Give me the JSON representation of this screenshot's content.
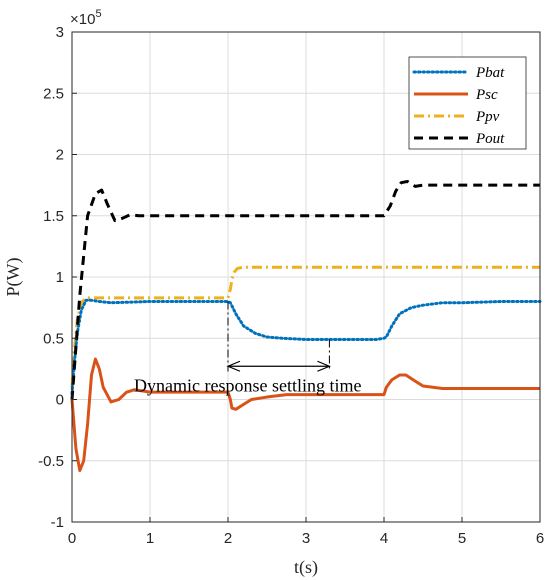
{
  "chart_data": {
    "type": "line",
    "xlabel": "t(s)",
    "ylabel": "P(W)",
    "xlim": [
      0,
      6
    ],
    "ylim": [
      -1,
      3
    ],
    "xticks": [
      "0",
      "1",
      "2",
      "3",
      "4",
      "5",
      "6"
    ],
    "yticks": [
      "-1",
      "-0.5",
      "0",
      "0.5",
      "1",
      "1.5",
      "2",
      "2.5",
      "3"
    ],
    "y_multiplier": "×10",
    "y_multiplier_exp": "5",
    "grid": true,
    "legend_position": "top-right",
    "series": [
      {
        "name": "Pbat",
        "color": "#0072BD",
        "style": "dotted",
        "x": [
          0,
          0.03,
          0.07,
          0.12,
          0.18,
          0.25,
          0.35,
          0.5,
          1.0,
          1.5,
          2.0,
          2.03,
          2.1,
          2.2,
          2.35,
          2.5,
          2.7,
          3.0,
          3.5,
          3.9,
          4.0,
          4.03,
          4.1,
          4.2,
          4.35,
          4.5,
          4.75,
          5.0,
          5.5,
          6.0
        ],
        "y": [
          0.05,
          0.3,
          0.55,
          0.73,
          0.81,
          0.81,
          0.8,
          0.79,
          0.8,
          0.8,
          0.8,
          0.79,
          0.7,
          0.6,
          0.54,
          0.51,
          0.5,
          0.49,
          0.49,
          0.49,
          0.5,
          0.51,
          0.6,
          0.7,
          0.75,
          0.77,
          0.79,
          0.79,
          0.8,
          0.8
        ]
      },
      {
        "name": "Psc",
        "color": "#D95319",
        "style": "solid",
        "x": [
          0,
          0.05,
          0.1,
          0.15,
          0.2,
          0.25,
          0.3,
          0.35,
          0.4,
          0.5,
          0.6,
          0.7,
          0.8,
          1.0,
          1.2,
          1.5,
          2.0,
          2.03,
          2.05,
          2.1,
          2.2,
          2.3,
          2.5,
          2.75,
          3.0,
          3.5,
          4.0,
          4.03,
          4.1,
          4.2,
          4.28,
          4.4,
          4.5,
          4.75,
          5.0,
          6.0
        ],
        "y": [
          0.0,
          -0.4,
          -0.58,
          -0.5,
          -0.2,
          0.2,
          0.33,
          0.25,
          0.1,
          -0.02,
          0.0,
          0.06,
          0.08,
          0.06,
          0.06,
          0.06,
          0.06,
          0.0,
          -0.07,
          -0.08,
          -0.04,
          0.0,
          0.02,
          0.04,
          0.04,
          0.04,
          0.04,
          0.1,
          0.16,
          0.2,
          0.2,
          0.15,
          0.11,
          0.09,
          0.09,
          0.09
        ]
      },
      {
        "name": "Ppv",
        "color": "#EDB120",
        "style": "dashdot",
        "x": [
          0,
          0.03,
          0.07,
          0.12,
          0.18,
          0.25,
          0.35,
          0.5,
          1.0,
          1.5,
          2.0,
          2.03,
          2.05,
          2.08,
          2.12,
          2.2,
          2.3,
          2.5,
          3.0,
          4.0,
          5.0,
          6.0
        ],
        "y": [
          0.1,
          0.4,
          0.66,
          0.79,
          0.83,
          0.83,
          0.83,
          0.83,
          0.83,
          0.83,
          0.83,
          0.9,
          0.98,
          1.04,
          1.07,
          1.08,
          1.08,
          1.08,
          1.08,
          1.08,
          1.08,
          1.08
        ]
      },
      {
        "name": "Pout",
        "color": "#000000",
        "style": "dashed",
        "x": [
          0,
          0.1,
          0.2,
          0.3,
          0.38,
          0.45,
          0.55,
          0.65,
          0.75,
          0.85,
          1.0,
          1.5,
          2.0,
          2.5,
          3.0,
          3.5,
          4.0,
          4.08,
          4.15,
          4.22,
          4.3,
          4.4,
          4.5,
          5.0,
          5.5,
          6.0
        ],
        "y": [
          0.0,
          0.85,
          1.5,
          1.68,
          1.71,
          1.6,
          1.46,
          1.48,
          1.51,
          1.5,
          1.5,
          1.5,
          1.5,
          1.5,
          1.5,
          1.5,
          1.5,
          1.58,
          1.7,
          1.77,
          1.78,
          1.74,
          1.75,
          1.75,
          1.75,
          1.75
        ]
      }
    ],
    "annotation": {
      "text": "Dynamic response settling time",
      "x_start": 2.0,
      "x_end": 3.3,
      "arrow_y": 0.5
    }
  }
}
